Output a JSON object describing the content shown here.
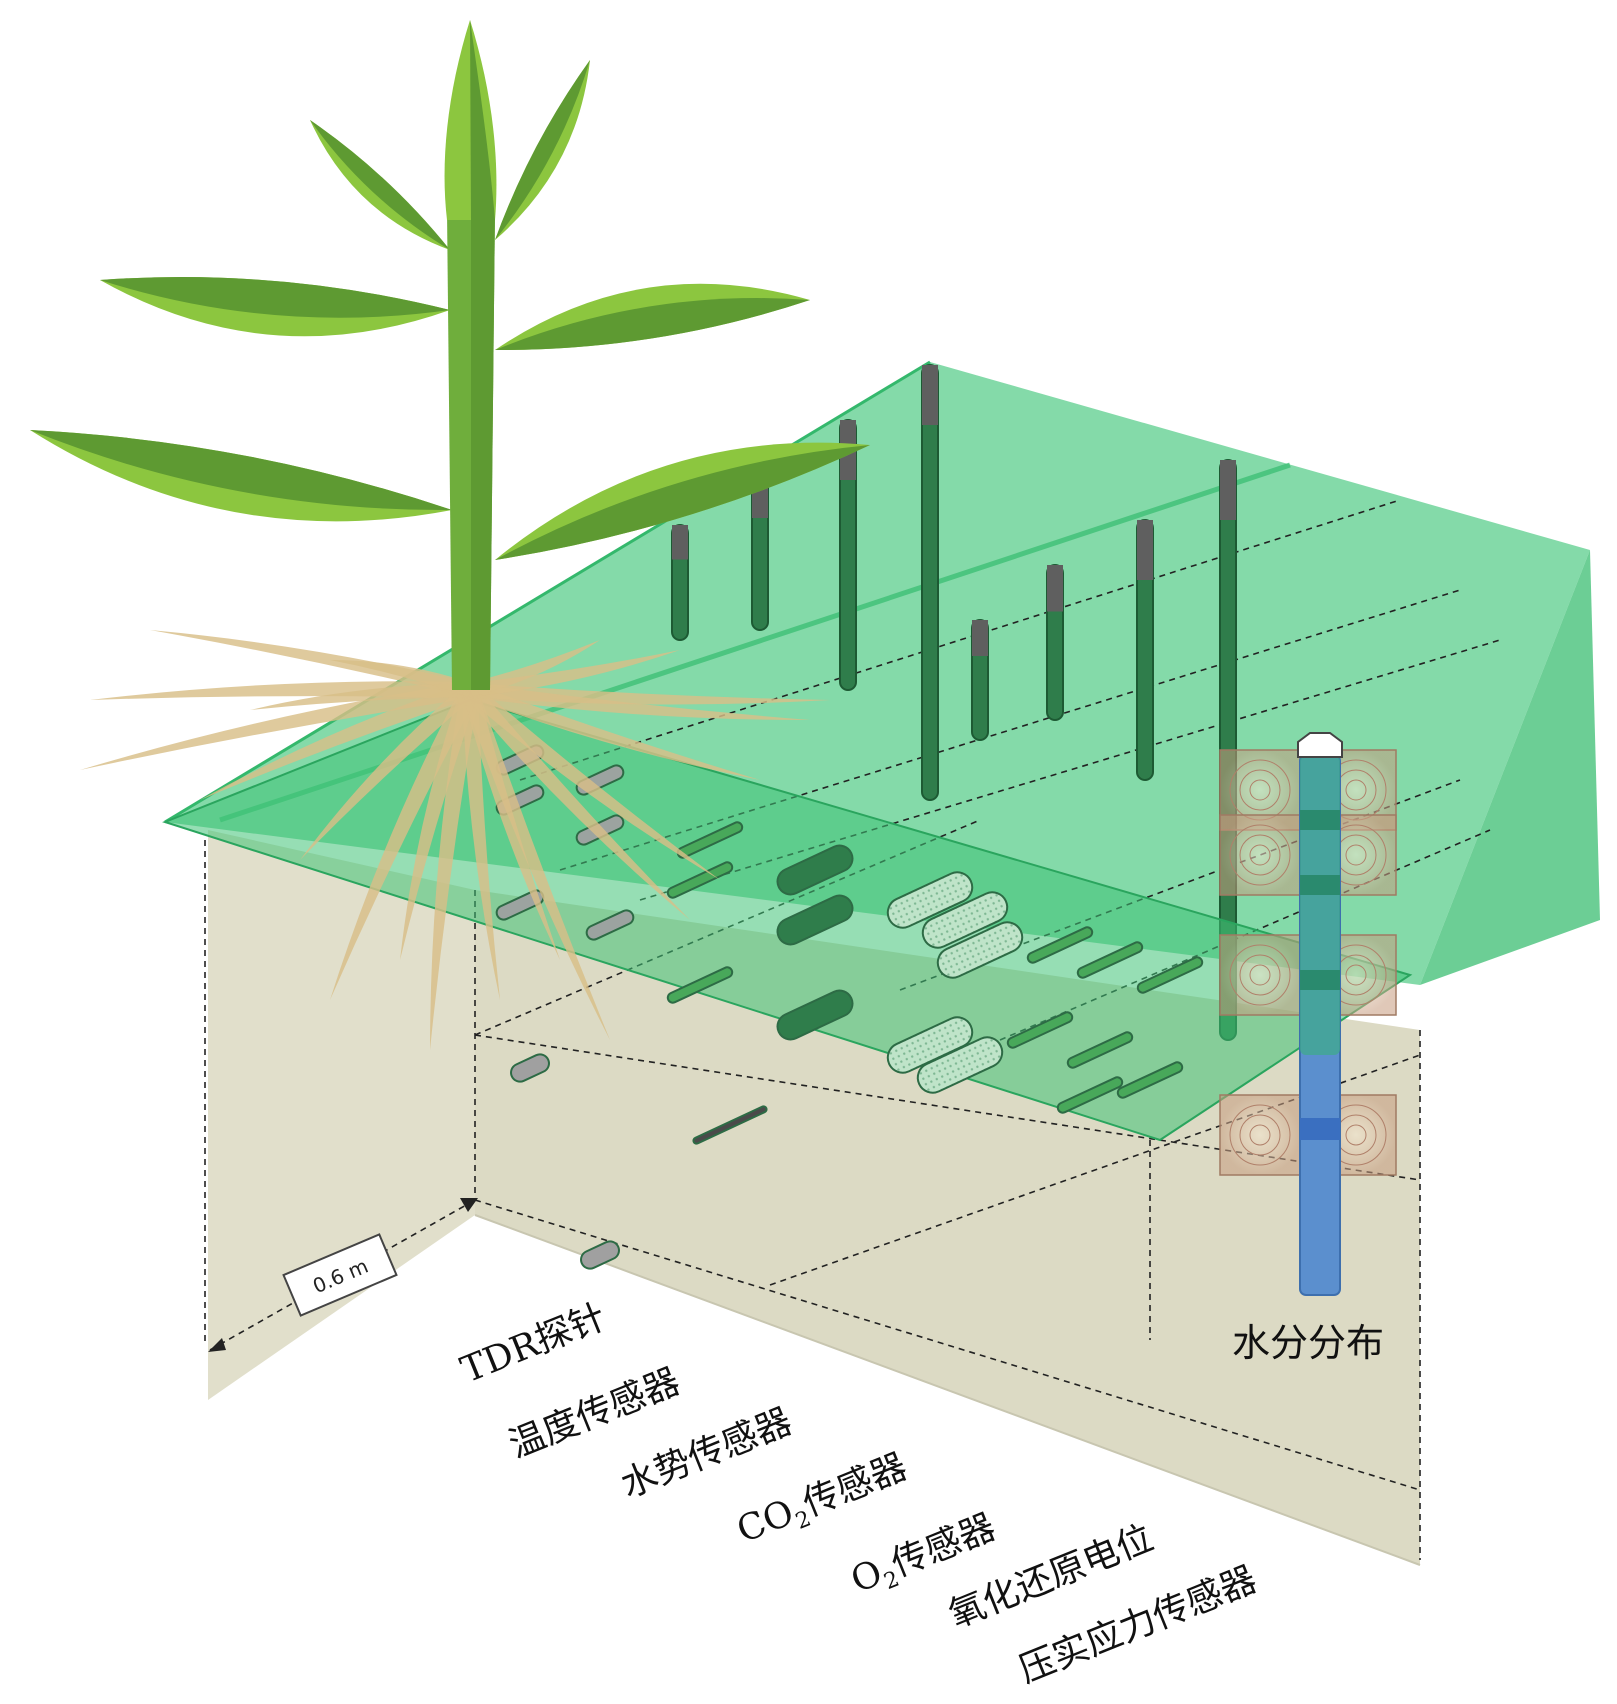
{
  "diagram": {
    "dimension_label": "0.6 m",
    "moisture_label": "水分分布",
    "sensor_labels": [
      {
        "id": "tdr",
        "text": "TDR探针"
      },
      {
        "id": "temp",
        "text": "温度传感器"
      },
      {
        "id": "water",
        "text": "水势传感器"
      },
      {
        "id": "co2",
        "prefix": "CO",
        "sub": "2",
        "suffix": "传感器"
      },
      {
        "id": "o2",
        "prefix": "O",
        "sub": "2",
        "suffix": "传感器"
      },
      {
        "id": "redox",
        "text": "氧化还原电位"
      },
      {
        "id": "compaction",
        "text": "压实应力传感器"
      }
    ]
  },
  "colors": {
    "leaf_light": "#8cc63f",
    "leaf_dark": "#5e9a32",
    "stem": "#6fae3c",
    "root": "#d8be87",
    "soil": "#e1dfcb",
    "green_plane": "#5fd08e",
    "green_edge": "#2fb56a",
    "probe_dark": "#2f7d4b",
    "probe_gray": "#5f5f5f",
    "moisture_tube": "#5b8fce"
  }
}
